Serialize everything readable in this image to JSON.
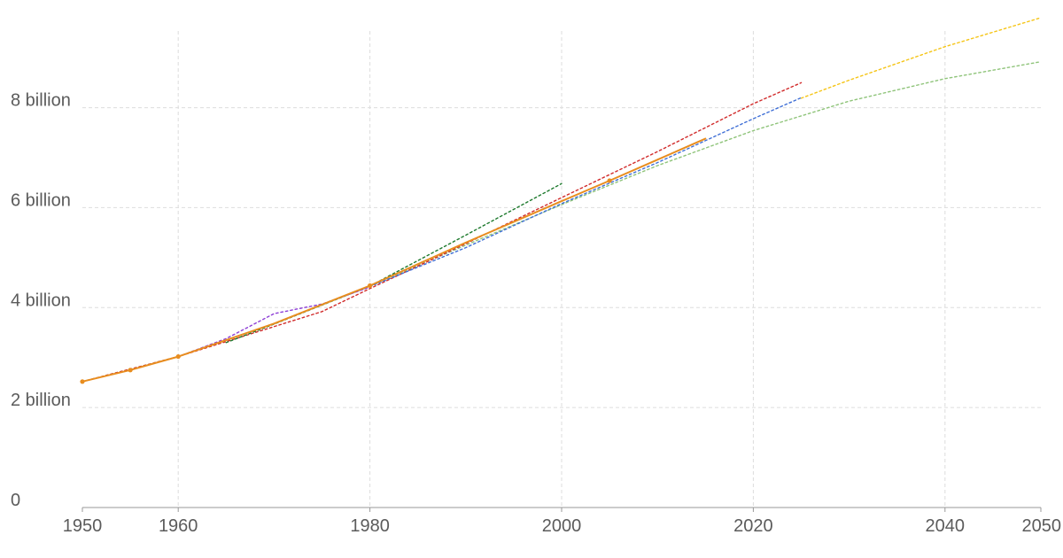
{
  "chart_data": {
    "type": "line",
    "title": "",
    "xlabel": "",
    "ylabel": "",
    "xlim": [
      1950,
      2050
    ],
    "ylim": [
      0,
      9800000000
    ],
    "grid": true,
    "legend": "none",
    "x_ticks": [
      {
        "value": 1950,
        "label": "1950"
      },
      {
        "value": 1960,
        "label": "1960"
      },
      {
        "value": 1980,
        "label": "1980"
      },
      {
        "value": 2000,
        "label": "2000"
      },
      {
        "value": 2020,
        "label": "2020"
      },
      {
        "value": 2040,
        "label": "2040"
      },
      {
        "value": 2050,
        "label": "2050"
      }
    ],
    "y_ticks": [
      {
        "value": 0,
        "label": "0"
      },
      {
        "value": 2000000000,
        "label": "2 billion"
      },
      {
        "value": 4000000000,
        "label": "4 billion"
      },
      {
        "value": 6000000000,
        "label": "6 billion"
      },
      {
        "value": 8000000000,
        "label": "8 billion"
      }
    ],
    "series": [
      {
        "color": "#8fc47a",
        "style": "dotted",
        "points": [
          [
            1950,
            2.52
          ],
          [
            1960,
            3.02
          ],
          [
            1970,
            3.68
          ],
          [
            1980,
            4.43
          ],
          [
            1990,
            5.25
          ],
          [
            2000,
            6.06
          ],
          [
            2010,
            6.84
          ],
          [
            2020,
            7.54
          ],
          [
            2030,
            8.13
          ],
          [
            2040,
            8.58
          ],
          [
            2050,
            8.92
          ]
        ]
      },
      {
        "color": "#f5c518",
        "style": "dotted",
        "points": [
          [
            2025,
            8.19
          ],
          [
            2030,
            8.55
          ],
          [
            2040,
            9.22
          ],
          [
            2050,
            9.8
          ]
        ]
      },
      {
        "color": "#d12b2b",
        "style": "dotted",
        "points": [
          [
            1950,
            2.52
          ],
          [
            1960,
            3.02
          ],
          [
            1975,
            3.92
          ],
          [
            1980,
            4.38
          ],
          [
            1990,
            5.28
          ],
          [
            2000,
            6.2
          ],
          [
            2010,
            7.12
          ],
          [
            2020,
            8.08
          ],
          [
            2025,
            8.5
          ]
        ]
      },
      {
        "color": "#1e7a2e",
        "style": "dotted",
        "points": [
          [
            1965,
            3.3
          ],
          [
            1970,
            3.67
          ],
          [
            1980,
            4.43
          ],
          [
            1990,
            5.45
          ],
          [
            2000,
            6.48
          ]
        ]
      },
      {
        "color": "#8e3fd6",
        "style": "dotted",
        "points": [
          [
            1960,
            3.02
          ],
          [
            1965,
            3.38
          ],
          [
            1970,
            3.88
          ],
          [
            1975,
            4.07
          ],
          [
            1980,
            4.41
          ]
        ]
      },
      {
        "color": "#3f6fd6",
        "style": "dotted",
        "points": [
          [
            1980,
            4.42
          ],
          [
            1990,
            5.2
          ],
          [
            2000,
            6.08
          ],
          [
            2010,
            6.9
          ],
          [
            2020,
            7.78
          ],
          [
            2025,
            8.2
          ]
        ]
      },
      {
        "color": "#e88d1f",
        "style": "solid",
        "points": [
          [
            1950,
            2.52
          ],
          [
            1955,
            2.75
          ],
          [
            1960,
            3.02
          ],
          [
            1970,
            3.68
          ],
          [
            1980,
            4.44
          ],
          [
            1990,
            5.3
          ],
          [
            2000,
            6.13
          ],
          [
            2005,
            6.54
          ],
          [
            2010,
            6.96
          ],
          [
            2015,
            7.38
          ]
        ],
        "markers": [
          [
            1950,
            2.52
          ],
          [
            1955,
            2.75
          ],
          [
            1960,
            3.02
          ],
          [
            1980,
            4.44
          ],
          [
            2005,
            6.54
          ]
        ]
      }
    ]
  }
}
